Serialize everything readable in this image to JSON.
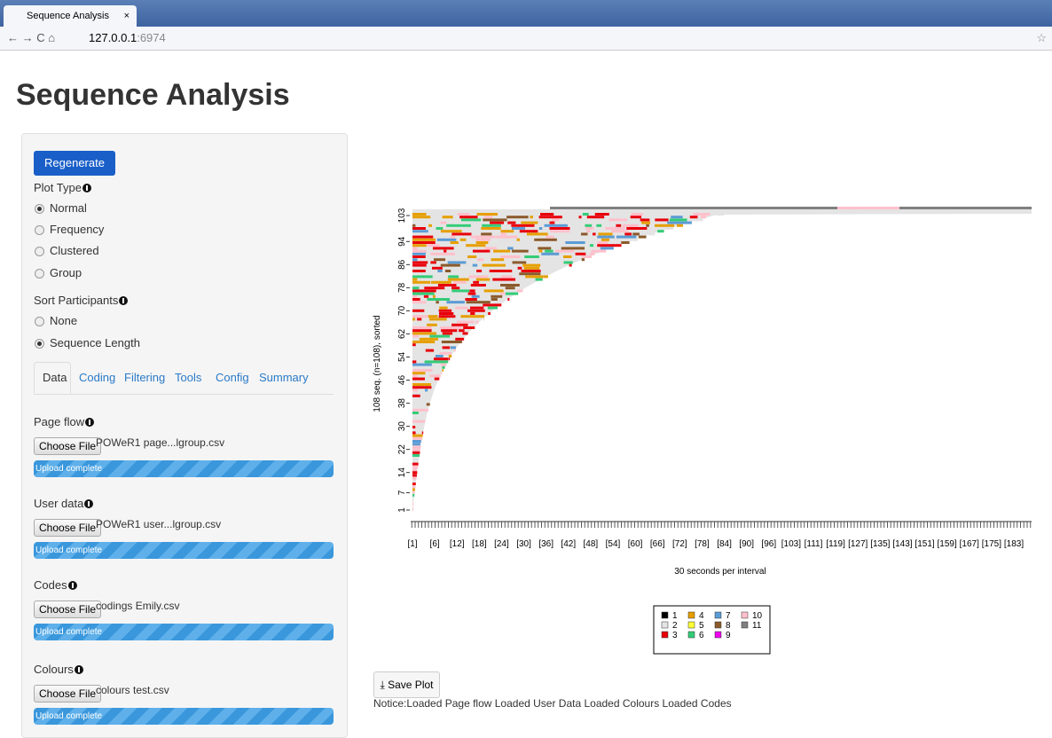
{
  "browser": {
    "tab_title": "Sequence Analysis",
    "url_host": "127.0.0.1",
    "url_port": ":6974"
  },
  "header": {
    "title": "Sequence Analysis"
  },
  "sidebar": {
    "regenerate_button": "Regenerate plot",
    "plot_type": {
      "label": "Plot Type",
      "options": [
        "Normal",
        "Frequency",
        "Clustered",
        "Group"
      ],
      "selected": 0
    },
    "sort": {
      "label": "Sort Participants",
      "options": [
        "None",
        "Sequence Length"
      ],
      "selected": 1
    },
    "tabs": [
      "Data",
      "Coding",
      "Filtering",
      "Tools",
      "Config",
      "Summary"
    ],
    "uploads": [
      {
        "label": "Page flow",
        "button": "Choose File",
        "file": "POWeR1 page...lgroup.csv",
        "status": "Upload complete"
      },
      {
        "label": "User data",
        "button": "Choose File",
        "file": "POWeR1 user...lgroup.csv",
        "status": "Upload complete"
      },
      {
        "label": "Codes",
        "button": "Choose File",
        "file": "codings Emily.csv",
        "status": "Upload complete"
      },
      {
        "label": "Colours",
        "button": "Choose File",
        "file": "colours test.csv",
        "status": "Upload complete"
      }
    ]
  },
  "plot": {
    "y_label": "108 seq. (n=108), sorted",
    "y_ticks": [
      1,
      7,
      14,
      22,
      30,
      38,
      46,
      54,
      62,
      70,
      78,
      86,
      94,
      103
    ],
    "x_label": "30 seconds per interval",
    "x_labels": [
      "[1]",
      "[6]",
      "[12]",
      "[18]",
      "[24]",
      "[30]",
      "[36]",
      "[42]",
      "[48]",
      "[54]",
      "[60]",
      "[66]",
      "[72]",
      "[78]",
      "[84]",
      "[90]",
      "[96]",
      "[103]",
      "[111]",
      "[119]",
      "[127]",
      "[135]",
      "[143]",
      "[151]",
      "[159]",
      "[167]",
      "[175]",
      "[183]"
    ],
    "legend": [
      {
        "label": "1",
        "color": "#000000"
      },
      {
        "label": "2",
        "color": "#e4e4e4"
      },
      {
        "label": "3",
        "color": "#e8000b"
      },
      {
        "label": "4",
        "color": "#e69f00"
      },
      {
        "label": "5",
        "color": "#ffff33"
      },
      {
        "label": "6",
        "color": "#33cc77"
      },
      {
        "label": "7",
        "color": "#5b9bd5"
      },
      {
        "label": "8",
        "color": "#8b5a2b"
      },
      {
        "label": "9",
        "color": "#ee00ee"
      },
      {
        "label": "10",
        "color": "#ffc0cb"
      },
      {
        "label": "11",
        "color": "#808080"
      }
    ]
  },
  "save_button": "Save Plot",
  "notice": "Notice:Loaded Page flow Loaded User Data Loaded Colours Loaded Codes"
}
